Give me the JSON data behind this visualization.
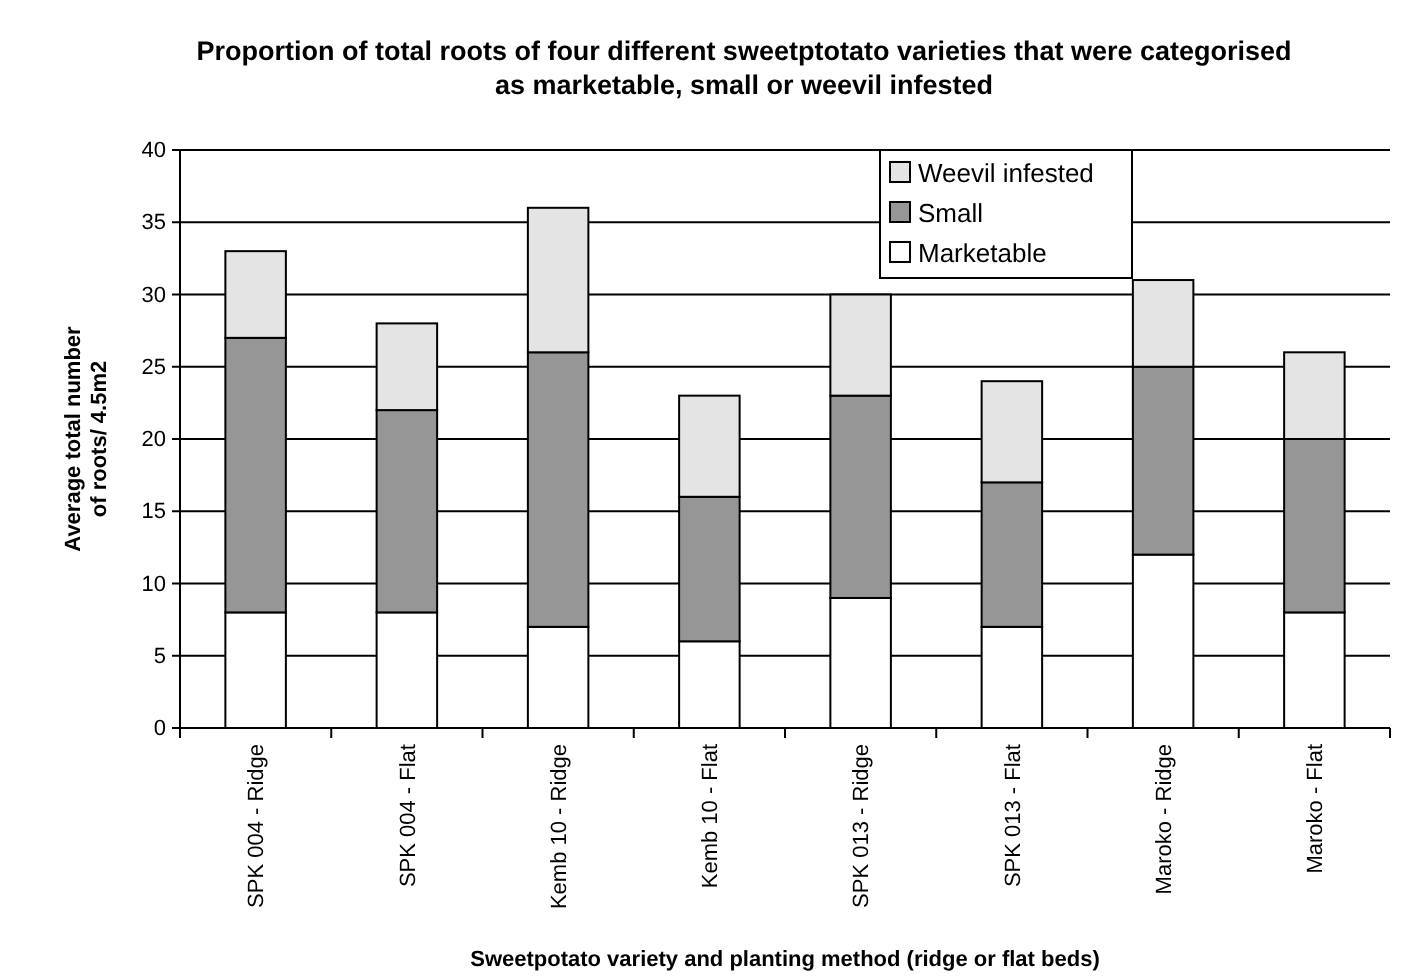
{
  "chart_data": {
    "type": "bar",
    "title": "Proportion of total roots of four different sweetptotato varieties that were categorised as marketable, small or weevil infested",
    "xlabel": "Sweetpotato variety and planting method (ridge or flat beds)",
    "ylabel": "Average total number of roots/ 4.5m2",
    "categories": [
      "SPK 004 - Ridge",
      "SPK 004 - Flat",
      "Kemb 10 - Ridge",
      "Kemb 10 - Flat",
      "SPK 013 - Ridge",
      "SPK 013 - Flat",
      "Maroko - Ridge",
      "Maroko - Flat"
    ],
    "series": [
      {
        "name": "Marketable",
        "color": "#ffffff",
        "values": [
          8,
          8,
          7,
          6,
          9,
          7,
          12,
          8
        ]
      },
      {
        "name": "Small",
        "color": "#969696",
        "values": [
          19,
          14,
          19,
          10,
          14,
          10,
          13,
          12
        ]
      },
      {
        "name": "Weevil infested",
        "color": "#e4e4e4",
        "values": [
          6,
          6,
          10,
          7,
          7,
          7,
          6,
          6
        ]
      }
    ],
    "stacked": true,
    "ylim": [
      0,
      40
    ],
    "yticks": [
      0,
      5,
      10,
      15,
      20,
      25,
      30,
      35,
      40
    ],
    "grid": "y",
    "legend": "top right"
  }
}
